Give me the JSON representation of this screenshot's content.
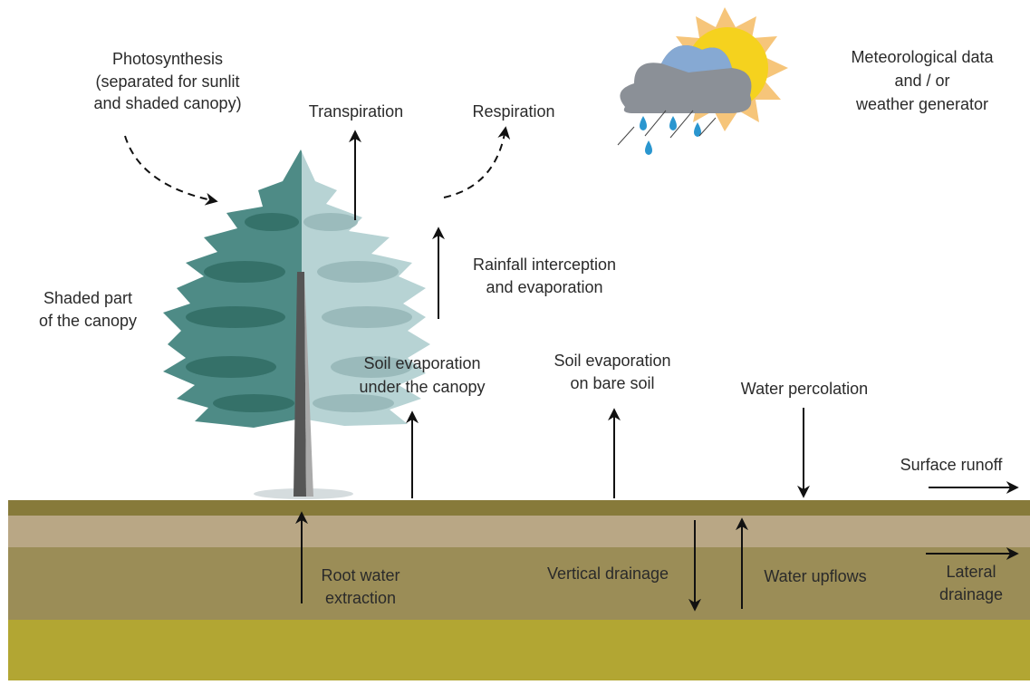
{
  "labels": {
    "photosynthesis": [
      "Photosynthesis",
      "(separated for sunlit",
      "and shaded canopy)"
    ],
    "transpiration": [
      "Transpiration"
    ],
    "respiration": [
      "Respiration"
    ],
    "meteo": [
      "Meteorological data",
      "and / or",
      "weather generator"
    ],
    "rainfall": [
      "Rainfall interception",
      "and evaporation"
    ],
    "shaded": [
      "Shaded part",
      "of the canopy"
    ],
    "soil_canopy": [
      "Soil evaporation",
      "under the canopy"
    ],
    "soil_bare": [
      "Soil evaporation",
      "on bare soil"
    ],
    "percolation": [
      "Water percolation"
    ],
    "runoff": [
      "Surface runoff"
    ],
    "root": [
      "Root water",
      "extraction"
    ],
    "vertical": [
      "Vertical drainage"
    ],
    "upflows": [
      "Water upflows"
    ],
    "lateral": [
      "Lateral",
      "drainage"
    ]
  }
}
